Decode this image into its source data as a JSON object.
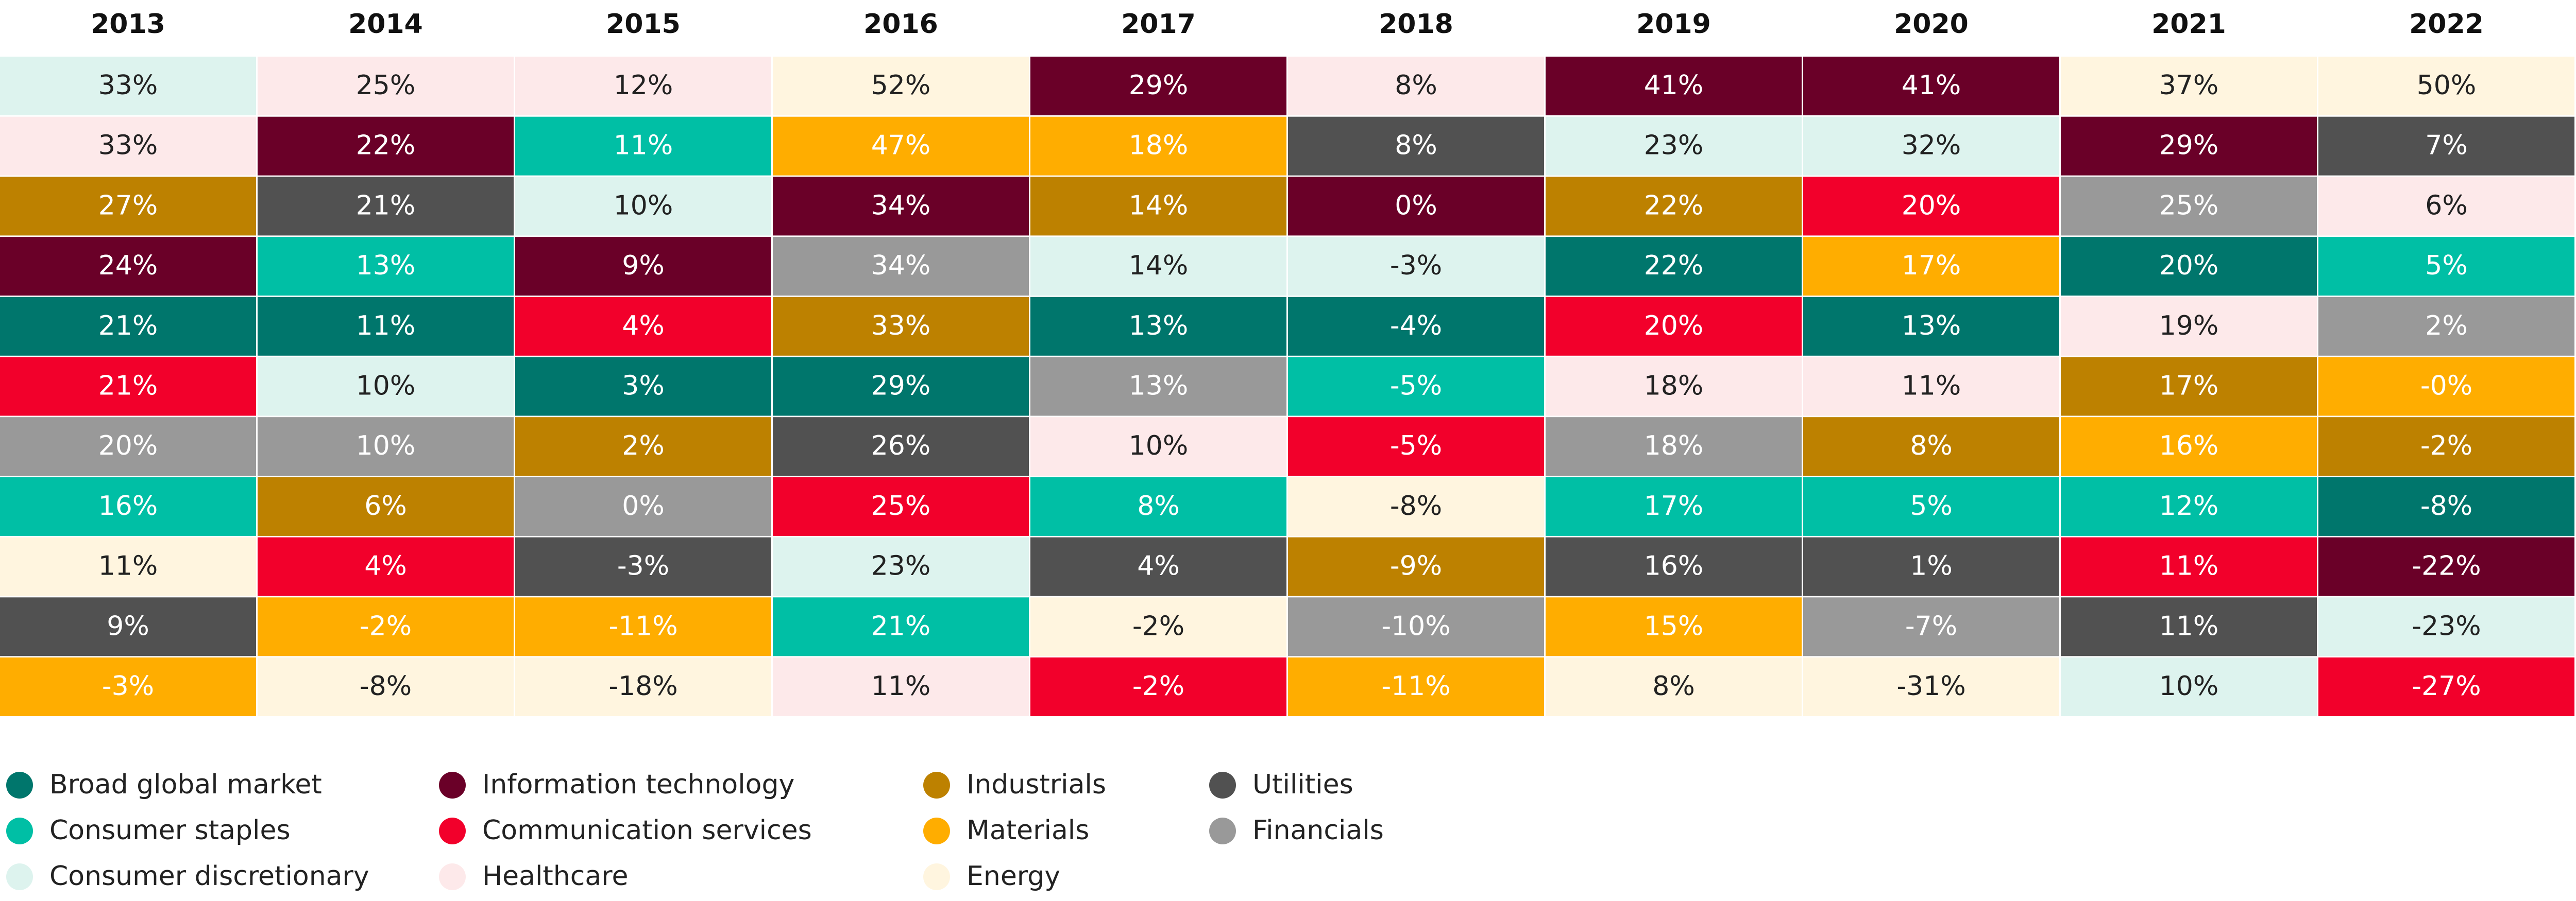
{
  "chart_data": {
    "type": "table",
    "years": [
      "2013",
      "2014",
      "2015",
      "2016",
      "2017",
      "2018",
      "2019",
      "2020",
      "2021",
      "2022"
    ],
    "sectors": [
      {
        "key": "bgm",
        "name": "Broad global market",
        "color": "#00766C",
        "text_color": "#FFFFFF"
      },
      {
        "key": "cs",
        "name": "Consumer staples",
        "color": "#00BFA5",
        "text_color": "#FFFFFF"
      },
      {
        "key": "cd",
        "name": "Consumer discretionary",
        "color": "#DDF3EE",
        "text_color": "#222222"
      },
      {
        "key": "it",
        "name": "Information technology",
        "color": "#6A0028",
        "text_color": "#FFFFFF"
      },
      {
        "key": "comm",
        "name": "Communication services",
        "color": "#F2002B",
        "text_color": "#FFFFFF"
      },
      {
        "key": "hc",
        "name": "Healthcare",
        "color": "#FDE9EA",
        "text_color": "#222222"
      },
      {
        "key": "ind",
        "name": "Industrials",
        "color": "#BD8100",
        "text_color": "#FFFFFF"
      },
      {
        "key": "mat",
        "name": "Materials",
        "color": "#FFAD00",
        "text_color": "#FFFFFF"
      },
      {
        "key": "en",
        "name": "Energy",
        "color": "#FFF5DF",
        "text_color": "#222222"
      },
      {
        "key": "ut",
        "name": "Utilities",
        "color": "#515151",
        "text_color": "#FFFFFF"
      },
      {
        "key": "fin",
        "name": "Financials",
        "color": "#999999",
        "text_color": "#FFFFFF"
      }
    ],
    "columns": [
      {
        "year": "2013",
        "cells": [
          {
            "sector": "cd",
            "value": "33%"
          },
          {
            "sector": "hc",
            "value": "33%"
          },
          {
            "sector": "ind",
            "value": "27%"
          },
          {
            "sector": "it",
            "value": "24%"
          },
          {
            "sector": "bgm",
            "value": "21%"
          },
          {
            "sector": "comm",
            "value": "21%"
          },
          {
            "sector": "fin",
            "value": "20%"
          },
          {
            "sector": "cs",
            "value": "16%"
          },
          {
            "sector": "en",
            "value": "11%"
          },
          {
            "sector": "ut",
            "value": "9%"
          },
          {
            "sector": "mat",
            "value": "-3%"
          }
        ]
      },
      {
        "year": "2014",
        "cells": [
          {
            "sector": "hc",
            "value": "25%"
          },
          {
            "sector": "it",
            "value": "22%"
          },
          {
            "sector": "ut",
            "value": "21%"
          },
          {
            "sector": "cs",
            "value": "13%"
          },
          {
            "sector": "bgm",
            "value": "11%"
          },
          {
            "sector": "cd",
            "value": "10%"
          },
          {
            "sector": "fin",
            "value": "10%"
          },
          {
            "sector": "ind",
            "value": "6%"
          },
          {
            "sector": "comm",
            "value": "4%"
          },
          {
            "sector": "mat",
            "value": "-2%"
          },
          {
            "sector": "en",
            "value": "-8%"
          }
        ]
      },
      {
        "year": "2015",
        "cells": [
          {
            "sector": "hc",
            "value": "12%"
          },
          {
            "sector": "cs",
            "value": "11%"
          },
          {
            "sector": "cd",
            "value": "10%"
          },
          {
            "sector": "it",
            "value": "9%"
          },
          {
            "sector": "comm",
            "value": "4%"
          },
          {
            "sector": "bgm",
            "value": "3%"
          },
          {
            "sector": "ind",
            "value": "2%"
          },
          {
            "sector": "fin",
            "value": "0%"
          },
          {
            "sector": "ut",
            "value": "-3%"
          },
          {
            "sector": "mat",
            "value": "-11%"
          },
          {
            "sector": "en",
            "value": "-18%"
          }
        ]
      },
      {
        "year": "2016",
        "cells": [
          {
            "sector": "en",
            "value": "52%"
          },
          {
            "sector": "mat",
            "value": "47%"
          },
          {
            "sector": "it",
            "value": "34%"
          },
          {
            "sector": "fin",
            "value": "34%"
          },
          {
            "sector": "ind",
            "value": "33%"
          },
          {
            "sector": "bgm",
            "value": "29%"
          },
          {
            "sector": "ut",
            "value": "26%"
          },
          {
            "sector": "comm",
            "value": "25%"
          },
          {
            "sector": "cd",
            "value": "23%"
          },
          {
            "sector": "cs",
            "value": "21%"
          },
          {
            "sector": "hc",
            "value": "11%"
          }
        ]
      },
      {
        "year": "2017",
        "cells": [
          {
            "sector": "it",
            "value": "29%"
          },
          {
            "sector": "mat",
            "value": "18%"
          },
          {
            "sector": "ind",
            "value": "14%"
          },
          {
            "sector": "cd",
            "value": "14%"
          },
          {
            "sector": "bgm",
            "value": "13%"
          },
          {
            "sector": "fin",
            "value": "13%"
          },
          {
            "sector": "hc",
            "value": "10%"
          },
          {
            "sector": "cs",
            "value": "8%"
          },
          {
            "sector": "ut",
            "value": "4%"
          },
          {
            "sector": "en",
            "value": "-2%"
          },
          {
            "sector": "comm",
            "value": "-2%"
          }
        ]
      },
      {
        "year": "2018",
        "cells": [
          {
            "sector": "hc",
            "value": "8%"
          },
          {
            "sector": "ut",
            "value": "8%"
          },
          {
            "sector": "it",
            "value": "0%"
          },
          {
            "sector": "cd",
            "value": "-3%"
          },
          {
            "sector": "bgm",
            "value": "-4%"
          },
          {
            "sector": "cs",
            "value": "-5%"
          },
          {
            "sector": "comm",
            "value": "-5%"
          },
          {
            "sector": "en",
            "value": "-8%"
          },
          {
            "sector": "ind",
            "value": "-9%"
          },
          {
            "sector": "fin",
            "value": "-10%"
          },
          {
            "sector": "mat",
            "value": "-11%"
          }
        ]
      },
      {
        "year": "2019",
        "cells": [
          {
            "sector": "it",
            "value": "41%"
          },
          {
            "sector": "cd",
            "value": "23%"
          },
          {
            "sector": "ind",
            "value": "22%"
          },
          {
            "sector": "bgm",
            "value": "22%"
          },
          {
            "sector": "comm",
            "value": "20%"
          },
          {
            "sector": "hc",
            "value": "18%"
          },
          {
            "sector": "fin",
            "value": "18%"
          },
          {
            "sector": "cs",
            "value": "17%"
          },
          {
            "sector": "ut",
            "value": "16%"
          },
          {
            "sector": "mat",
            "value": "15%"
          },
          {
            "sector": "en",
            "value": "8%"
          }
        ]
      },
      {
        "year": "2020",
        "cells": [
          {
            "sector": "it",
            "value": "41%"
          },
          {
            "sector": "cd",
            "value": "32%"
          },
          {
            "sector": "comm",
            "value": "20%"
          },
          {
            "sector": "mat",
            "value": "17%"
          },
          {
            "sector": "bgm",
            "value": "13%"
          },
          {
            "sector": "hc",
            "value": "11%"
          },
          {
            "sector": "ind",
            "value": "8%"
          },
          {
            "sector": "cs",
            "value": "5%"
          },
          {
            "sector": "ut",
            "value": "1%"
          },
          {
            "sector": "fin",
            "value": "-7%"
          },
          {
            "sector": "en",
            "value": "-31%"
          }
        ]
      },
      {
        "year": "2021",
        "cells": [
          {
            "sector": "en",
            "value": "37%"
          },
          {
            "sector": "it",
            "value": "29%"
          },
          {
            "sector": "fin",
            "value": "25%"
          },
          {
            "sector": "bgm",
            "value": "20%"
          },
          {
            "sector": "hc",
            "value": "19%"
          },
          {
            "sector": "ind",
            "value": "17%"
          },
          {
            "sector": "mat",
            "value": "16%"
          },
          {
            "sector": "cs",
            "value": "12%"
          },
          {
            "sector": "comm",
            "value": "11%"
          },
          {
            "sector": "ut",
            "value": "11%"
          },
          {
            "sector": "cd",
            "value": "10%"
          }
        ]
      },
      {
        "year": "2022",
        "cells": [
          {
            "sector": "en",
            "value": "50%"
          },
          {
            "sector": "ut",
            "value": "7%"
          },
          {
            "sector": "hc",
            "value": "6%"
          },
          {
            "sector": "cs",
            "value": "5%"
          },
          {
            "sector": "fin",
            "value": "2%"
          },
          {
            "sector": "mat",
            "value": "-0%"
          },
          {
            "sector": "ind",
            "value": "-2%"
          },
          {
            "sector": "bgm",
            "value": "-8%"
          },
          {
            "sector": "it",
            "value": "-22%"
          },
          {
            "sector": "cd",
            "value": "-23%"
          },
          {
            "sector": "comm",
            "value": "-27%"
          }
        ]
      }
    ],
    "legend": {
      "placement": "bottom-left",
      "columns": [
        [
          "bgm",
          "cs",
          "cd"
        ],
        [
          "it",
          "comm",
          "hc"
        ],
        [
          "ind",
          "mat",
          "en"
        ],
        [
          "ut",
          "fin"
        ]
      ]
    }
  }
}
